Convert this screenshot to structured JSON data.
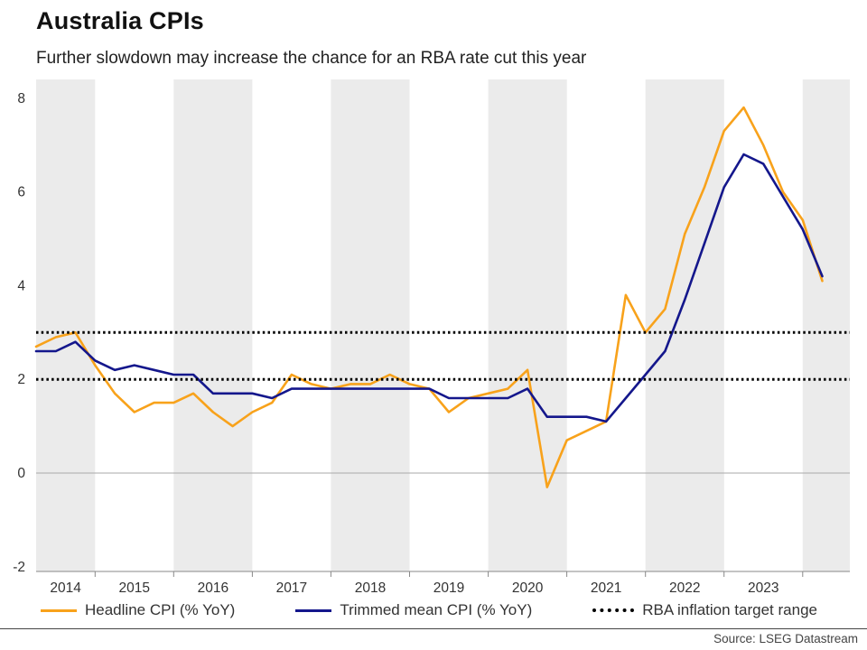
{
  "title": "Australia CPIs",
  "subtitle": "Further slowdown may increase the chance for an RBA rate cut this year",
  "source": "Source: LSEG Datastream",
  "colors": {
    "headline": "#F8A21B",
    "trimmed": "#14178C",
    "target": "#000000",
    "band": "#EBEBEB",
    "zero_line": "#A8A8A8",
    "axis": "#888888",
    "text": "#333333"
  },
  "legend": [
    {
      "label": "Headline CPI (% YoY)",
      "style": "solid",
      "color": "#F8A21B"
    },
    {
      "label": "Trimmed mean CPI (% YoY)",
      "style": "solid",
      "color": "#14178C"
    },
    {
      "label": "RBA inflation target range",
      "style": "dotted",
      "color": "#000000"
    }
  ],
  "chart_data": {
    "type": "line",
    "title": "Australia CPIs",
    "subtitle": "Further slowdown may increase the chance for an RBA rate cut this year",
    "x_frequency": "quarterly",
    "x_start": 2013.75,
    "x_step": 0.25,
    "x_range_note": "2013 Q4 through 2023 Q4",
    "x_tick_labels": [
      "2014",
      "2015",
      "2016",
      "2017",
      "2018",
      "2019",
      "2020",
      "2021",
      "2022",
      "2023"
    ],
    "y_ticks": [
      -2,
      0,
      2,
      4,
      6,
      8
    ],
    "ylim": [
      -2.1,
      8.4
    ],
    "xlim": [
      2013.75,
      2024.1
    ],
    "ylabel": "",
    "xlabel": "",
    "grid": "alternating-year-bands",
    "legend_position": "bottom",
    "series": [
      {
        "name": "Headline CPI (% YoY)",
        "color": "#F8A21B",
        "values": [
          2.7,
          2.9,
          3.0,
          2.3,
          1.7,
          1.3,
          1.5,
          1.5,
          1.7,
          1.3,
          1.0,
          1.3,
          1.5,
          2.1,
          1.9,
          1.8,
          1.9,
          1.9,
          2.1,
          1.9,
          1.8,
          1.3,
          1.6,
          1.7,
          1.8,
          2.2,
          -0.3,
          0.7,
          0.9,
          1.1,
          3.8,
          3.0,
          3.5,
          5.1,
          6.1,
          7.3,
          7.8,
          7.0,
          6.0,
          5.4,
          4.1
        ]
      },
      {
        "name": "Trimmed mean CPI (% YoY)",
        "color": "#14178C",
        "values": [
          2.6,
          2.6,
          2.8,
          2.4,
          2.2,
          2.3,
          2.2,
          2.1,
          2.1,
          1.7,
          1.7,
          1.7,
          1.6,
          1.8,
          1.8,
          1.8,
          1.8,
          1.8,
          1.8,
          1.8,
          1.8,
          1.6,
          1.6,
          1.6,
          1.6,
          1.8,
          1.2,
          1.2,
          1.2,
          1.1,
          1.6,
          2.1,
          2.6,
          3.7,
          4.9,
          6.1,
          6.8,
          6.6,
          5.9,
          5.2,
          4.2
        ]
      }
    ],
    "reference_lines": [
      {
        "value": 3,
        "label": "RBA inflation target range (upper)",
        "style": "dotted",
        "color": "#000000"
      },
      {
        "value": 2,
        "label": "RBA inflation target range (lower)",
        "style": "dotted",
        "color": "#000000"
      }
    ]
  }
}
